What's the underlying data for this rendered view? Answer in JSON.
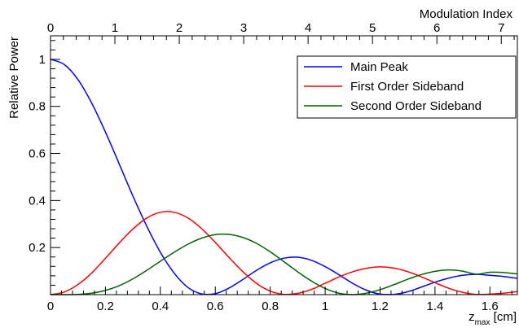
{
  "chart_data": {
    "type": "line",
    "title": "",
    "xlabel_main": "z",
    "xlabel_sub": "max",
    "xlabel_unit": " [cm]",
    "ylabel": "Relative Power",
    "top_axis_label": "Modulation Index",
    "xlim": [
      0,
      1.7
    ],
    "ylim": [
      0,
      1.1
    ],
    "top_axis_range": [
      0,
      7.25
    ],
    "x_ticks": [
      0,
      0.2,
      0.4,
      0.6,
      0.8,
      1,
      1.2,
      1.4,
      1.6
    ],
    "x_tick_labels": [
      "0",
      "0.2",
      "0.4",
      "0.6",
      "0.8",
      "1",
      "1.2",
      "1.4",
      "1.6"
    ],
    "y_ticks": [
      0.2,
      0.4,
      0.6,
      0.8,
      1
    ],
    "y_tick_labels": [
      "0.2",
      "0.4",
      "0.6",
      "0.8",
      "1"
    ],
    "top_ticks": [
      0,
      1,
      2,
      3,
      4,
      5,
      6,
      7
    ],
    "top_tick_labels": [
      "0",
      "1",
      "2",
      "3",
      "4",
      "5",
      "6",
      "7"
    ],
    "legend_position": "top-right",
    "grid": false,
    "series": [
      {
        "name": "Main Peak",
        "color": "#0000ff",
        "x": [
          0,
          0.05,
          0.1,
          0.15,
          0.2,
          0.25,
          0.3,
          0.35,
          0.4,
          0.45,
          0.5,
          0.55,
          0.6,
          0.65,
          0.7,
          0.75,
          0.8,
          0.85,
          0.9,
          0.95,
          1.0,
          1.05,
          1.1,
          1.15,
          1.2,
          1.25,
          1.3,
          1.35,
          1.4,
          1.45,
          1.5,
          1.55,
          1.6,
          1.65,
          1.7
        ],
        "values": [
          1.0,
          0.978,
          0.914,
          0.814,
          0.691,
          0.556,
          0.419,
          0.292,
          0.18,
          0.092,
          0.031,
          0.003,
          0.004,
          0.028,
          0.064,
          0.103,
          0.135,
          0.155,
          0.159,
          0.146,
          0.119,
          0.085,
          0.048,
          0.019,
          0.002,
          0.001,
          0.012,
          0.032,
          0.053,
          0.07,
          0.082,
          0.086,
          0.082,
          0.077,
          0.069
        ]
      },
      {
        "name": "First Order Sideband",
        "color": "#ff0000",
        "x": [
          0,
          0.05,
          0.1,
          0.15,
          0.2,
          0.25,
          0.3,
          0.35,
          0.4,
          0.45,
          0.5,
          0.55,
          0.6,
          0.65,
          0.7,
          0.75,
          0.8,
          0.85,
          0.9,
          0.95,
          1.0,
          1.05,
          1.1,
          1.15,
          1.2,
          1.25,
          1.3,
          1.35,
          1.4,
          1.45,
          1.5,
          1.55,
          1.6,
          1.65,
          1.7
        ],
        "values": [
          0.0,
          0.011,
          0.043,
          0.092,
          0.154,
          0.219,
          0.279,
          0.325,
          0.35,
          0.35,
          0.326,
          0.281,
          0.222,
          0.158,
          0.098,
          0.048,
          0.015,
          0.001,
          0.005,
          0.022,
          0.048,
          0.075,
          0.097,
          0.112,
          0.118,
          0.113,
          0.098,
          0.076,
          0.051,
          0.027,
          0.01,
          0.001,
          0.002,
          0.006,
          0.013
        ]
      },
      {
        "name": "Second Order Sideband",
        "color": "#006400",
        "x": [
          0,
          0.05,
          0.1,
          0.15,
          0.2,
          0.25,
          0.3,
          0.35,
          0.4,
          0.45,
          0.5,
          0.55,
          0.6,
          0.65,
          0.7,
          0.75,
          0.8,
          0.85,
          0.9,
          0.95,
          1.0,
          1.05,
          1.1,
          1.15,
          1.2,
          1.25,
          1.3,
          1.35,
          1.4,
          1.45,
          1.5,
          1.55,
          1.6,
          1.65,
          1.7
        ],
        "values": [
          0.0,
          0.0,
          0.001,
          0.006,
          0.018,
          0.038,
          0.067,
          0.103,
          0.142,
          0.18,
          0.214,
          0.24,
          0.255,
          0.256,
          0.243,
          0.218,
          0.182,
          0.14,
          0.097,
          0.058,
          0.026,
          0.006,
          0.0,
          0.006,
          0.021,
          0.042,
          0.065,
          0.085,
          0.099,
          0.105,
          0.1,
          0.087,
          0.095,
          0.094,
          0.088
        ]
      }
    ]
  }
}
